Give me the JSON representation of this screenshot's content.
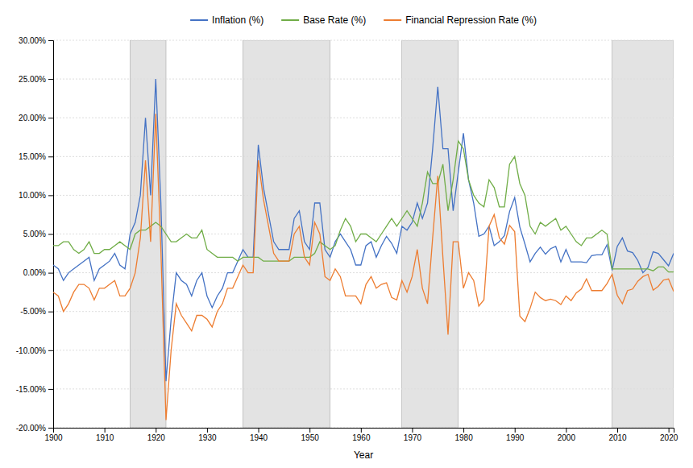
{
  "chart_data": {
    "type": "line",
    "xlabel": "Year",
    "x": [
      1900,
      1901,
      1902,
      1903,
      1904,
      1905,
      1906,
      1907,
      1908,
      1909,
      1910,
      1911,
      1912,
      1913,
      1914,
      1915,
      1916,
      1917,
      1918,
      1919,
      1920,
      1921,
      1922,
      1923,
      1924,
      1925,
      1926,
      1927,
      1928,
      1929,
      1930,
      1931,
      1932,
      1933,
      1934,
      1935,
      1936,
      1937,
      1938,
      1939,
      1940,
      1941,
      1942,
      1943,
      1944,
      1945,
      1946,
      1947,
      1948,
      1949,
      1950,
      1951,
      1952,
      1953,
      1954,
      1955,
      1956,
      1957,
      1958,
      1959,
      1960,
      1961,
      1962,
      1963,
      1964,
      1965,
      1966,
      1967,
      1968,
      1969,
      1970,
      1971,
      1972,
      1973,
      1974,
      1975,
      1976,
      1977,
      1978,
      1979,
      1980,
      1981,
      1982,
      1983,
      1984,
      1985,
      1986,
      1987,
      1988,
      1989,
      1990,
      1991,
      1992,
      1993,
      1994,
      1995,
      1996,
      1997,
      1998,
      1999,
      2000,
      2001,
      2002,
      2003,
      2004,
      2005,
      2006,
      2007,
      2008,
      2009,
      2010,
      2011,
      2012,
      2013,
      2014,
      2015,
      2016,
      2017,
      2018,
      2019,
      2020,
      2021
    ],
    "series": [
      {
        "name": "Inflation (%)",
        "color": "#4472C4",
        "values": [
          0.01,
          0.005,
          -0.01,
          0.0,
          0.005,
          0.01,
          0.015,
          0.02,
          -0.01,
          0.005,
          0.01,
          0.015,
          0.025,
          0.01,
          0.005,
          0.05,
          0.065,
          0.1,
          0.2,
          0.1,
          0.25,
          0.09,
          -0.14,
          -0.06,
          0.0,
          -0.01,
          -0.015,
          -0.03,
          -0.01,
          0.0,
          -0.03,
          -0.045,
          -0.03,
          -0.02,
          0.0,
          0.0,
          0.015,
          0.03,
          0.02,
          0.02,
          0.165,
          0.11,
          0.075,
          0.04,
          0.03,
          0.03,
          0.03,
          0.07,
          0.08,
          0.04,
          0.03,
          0.09,
          0.09,
          0.03,
          0.02,
          0.04,
          0.05,
          0.04,
          0.03,
          0.01,
          0.01,
          0.035,
          0.04,
          0.02,
          0.035,
          0.047,
          0.038,
          0.025,
          0.06,
          0.055,
          0.065,
          0.09,
          0.07,
          0.09,
          0.16,
          0.24,
          0.16,
          0.16,
          0.08,
          0.13,
          0.18,
          0.12,
          0.09,
          0.047,
          0.05,
          0.06,
          0.035,
          0.04,
          0.048,
          0.079,
          0.097,
          0.059,
          0.037,
          0.014,
          0.025,
          0.033,
          0.024,
          0.031,
          0.034,
          0.014,
          0.03,
          0.014,
          0.014,
          0.014,
          0.013,
          0.022,
          0.023,
          0.023,
          0.036,
          0.003,
          0.034,
          0.045,
          0.028,
          0.026,
          0.016,
          0.0,
          0.007,
          0.027,
          0.025,
          0.017,
          0.009,
          0.025
        ]
      },
      {
        "name": "Base Rate (%)",
        "color": "#70AD47",
        "values": [
          0.035,
          0.035,
          0.04,
          0.04,
          0.03,
          0.025,
          0.03,
          0.04,
          0.025,
          0.025,
          0.03,
          0.03,
          0.035,
          0.04,
          0.035,
          0.03,
          0.05,
          0.055,
          0.055,
          0.06,
          0.065,
          0.06,
          0.05,
          0.04,
          0.04,
          0.045,
          0.05,
          0.045,
          0.045,
          0.055,
          0.03,
          0.025,
          0.02,
          0.02,
          0.02,
          0.02,
          0.015,
          0.02,
          0.02,
          0.02,
          0.02,
          0.015,
          0.015,
          0.015,
          0.015,
          0.015,
          0.015,
          0.02,
          0.02,
          0.02,
          0.02,
          0.025,
          0.04,
          0.035,
          0.03,
          0.035,
          0.055,
          0.07,
          0.06,
          0.04,
          0.05,
          0.05,
          0.045,
          0.04,
          0.05,
          0.06,
          0.07,
          0.06,
          0.07,
          0.08,
          0.07,
          0.06,
          0.09,
          0.13,
          0.115,
          0.115,
          0.14,
          0.08,
          0.12,
          0.17,
          0.16,
          0.12,
          0.1,
          0.09,
          0.085,
          0.12,
          0.11,
          0.085,
          0.085,
          0.14,
          0.15,
          0.115,
          0.1,
          0.06,
          0.05,
          0.065,
          0.06,
          0.065,
          0.07,
          0.055,
          0.06,
          0.05,
          0.04,
          0.035,
          0.045,
          0.045,
          0.05,
          0.055,
          0.05,
          0.005,
          0.005,
          0.005,
          0.005,
          0.005,
          0.005,
          0.005,
          0.005,
          0.0025,
          0.0075,
          0.0075,
          0.001,
          0.001
        ]
      },
      {
        "name": "Financial Repression Rate (%)",
        "color": "#ED7D31",
        "values": [
          -0.025,
          -0.03,
          -0.05,
          -0.04,
          -0.025,
          -0.015,
          -0.015,
          -0.02,
          -0.035,
          -0.02,
          -0.02,
          -0.015,
          -0.01,
          -0.03,
          -0.03,
          -0.02,
          0.0,
          0.045,
          0.145,
          0.04,
          0.205,
          0.03,
          -0.19,
          -0.1,
          -0.04,
          -0.055,
          -0.065,
          -0.075,
          -0.055,
          -0.055,
          -0.06,
          -0.07,
          -0.05,
          -0.04,
          -0.02,
          -0.02,
          -0.005,
          0.01,
          0.0,
          0.0,
          0.145,
          0.095,
          0.06,
          0.025,
          0.015,
          0.015,
          0.015,
          0.05,
          0.06,
          0.02,
          0.01,
          0.065,
          0.05,
          -0.005,
          -0.01,
          0.005,
          -0.005,
          -0.03,
          -0.03,
          -0.03,
          -0.04,
          -0.015,
          -0.005,
          -0.02,
          -0.015,
          -0.013,
          -0.032,
          -0.035,
          -0.01,
          -0.025,
          -0.005,
          0.03,
          -0.02,
          -0.04,
          0.045,
          0.125,
          0.02,
          -0.08,
          0.04,
          0.04,
          -0.02,
          0.0,
          -0.01,
          -0.043,
          -0.035,
          0.06,
          0.075,
          0.045,
          0.037,
          0.061,
          0.053,
          -0.056,
          -0.063,
          -0.046,
          -0.025,
          -0.032,
          -0.036,
          -0.034,
          -0.036,
          -0.041,
          -0.03,
          -0.036,
          -0.026,
          -0.021,
          -0.008,
          -0.023,
          -0.023,
          -0.023,
          -0.014,
          -0.002,
          -0.029,
          -0.04,
          -0.023,
          -0.021,
          -0.011,
          -0.005,
          -0.002,
          -0.0225,
          -0.0175,
          -0.0095,
          -0.008,
          -0.024
        ]
      }
    ],
    "shading": {
      "color": "#D0D0D0",
      "periods": [
        [
          1915,
          1922
        ],
        [
          1937,
          1954
        ],
        [
          1968,
          1979
        ],
        [
          2009,
          2021
        ]
      ]
    },
    "xlim": [
      1900,
      2021
    ],
    "xticks": [
      1900,
      1910,
      1920,
      1930,
      1940,
      1950,
      1960,
      1970,
      1980,
      1990,
      2000,
      2010,
      2020
    ],
    "ylim": [
      -0.2,
      0.3
    ],
    "yticks": [
      {
        "value": -0.2,
        "label": "-20.00%"
      },
      {
        "value": -0.15,
        "label": "-15.00%"
      },
      {
        "value": -0.1,
        "label": "-10.00%"
      },
      {
        "value": -0.05,
        "label": "-5.00%"
      },
      {
        "value": 0.0,
        "label": "0.00%"
      },
      {
        "value": 0.05,
        "label": "5.00%"
      },
      {
        "value": 0.1,
        "label": "10.00%"
      },
      {
        "value": 0.15,
        "label": "15.00%"
      },
      {
        "value": 0.2,
        "label": "20.00%"
      },
      {
        "value": 0.25,
        "label": "25.00%"
      },
      {
        "value": 0.3,
        "label": "30.00%"
      }
    ],
    "grid": true,
    "legend": "top"
  }
}
